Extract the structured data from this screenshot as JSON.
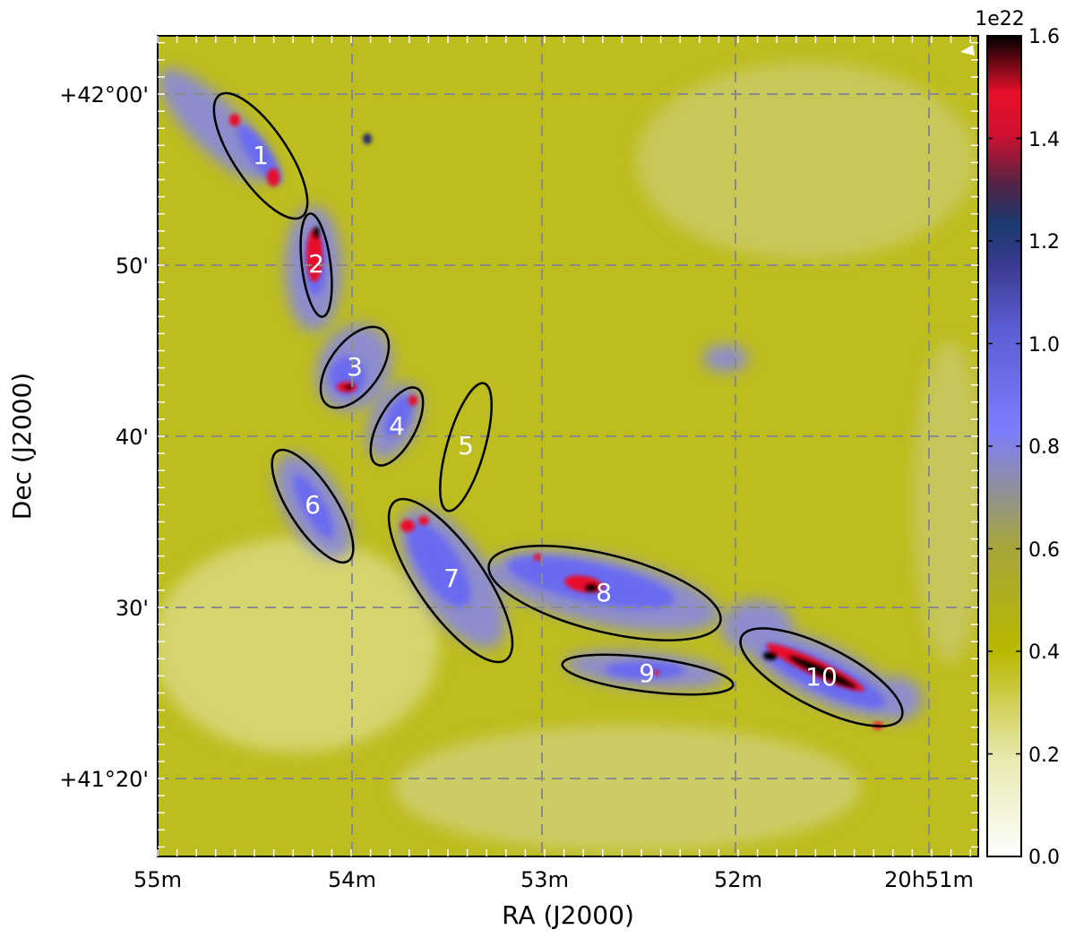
{
  "chart_data": {
    "type": "heatmap",
    "title": "",
    "xlabel": "RA (J2000)",
    "ylabel": "Dec (J2000)",
    "x_ticks": [
      "55m",
      "54m",
      "53m",
      "52m",
      "20h51m"
    ],
    "y_ticks": [
      "+42°00'",
      "50'",
      "40'",
      "30'",
      "+41°20'"
    ],
    "xlim_minutes_ra": [
      55.0,
      50.75
    ],
    "ylim_arcmin_dec": [
      15.5,
      63.3
    ],
    "grid": true,
    "colorbar": {
      "label": "",
      "multiplier": "1e22",
      "range": [
        0.0,
        1.6
      ],
      "ticks": [
        "0.0",
        "0.2",
        "0.4",
        "0.6",
        "0.8",
        "1.0",
        "1.2",
        "1.4",
        "1.6"
      ],
      "colors": [
        "#ffffff",
        "#d8d87a",
        "#b8b800",
        "#9c9c5c",
        "#7878ff",
        "#4848b4",
        "#1a3a70",
        "#e8102a",
        "#000000"
      ]
    },
    "regions": [
      {
        "label": "1"
      },
      {
        "label": "2"
      },
      {
        "label": "3"
      },
      {
        "label": "4"
      },
      {
        "label": "5"
      },
      {
        "label": "6"
      },
      {
        "label": "7"
      },
      {
        "label": "8"
      },
      {
        "label": "9"
      },
      {
        "label": "10"
      }
    ]
  }
}
